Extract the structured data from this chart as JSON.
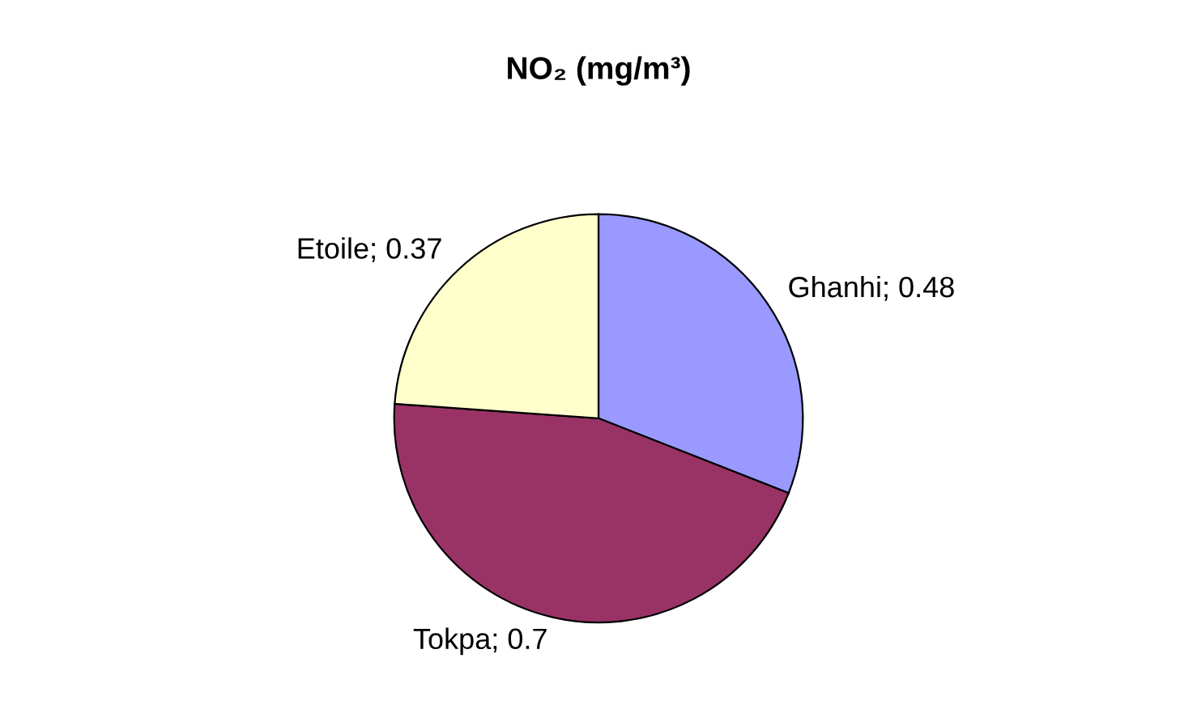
{
  "chart_data": {
    "type": "pie",
    "title": "NO₂ (mg/m³)",
    "categories": [
      "Ghanhi",
      "Tokpa",
      "Etoile"
    ],
    "values": [
      0.48,
      0.7,
      0.37
    ],
    "colors": [
      "#9999ff",
      "#993366",
      "#ffffcc"
    ],
    "value_labels": [
      "; 0.48",
      "; 0.7",
      "; 0.37"
    ],
    "legend": false
  }
}
